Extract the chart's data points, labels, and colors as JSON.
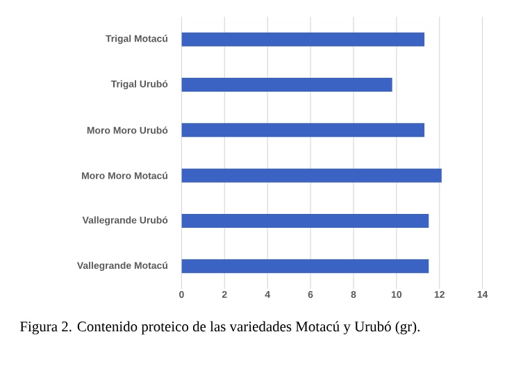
{
  "chart_data": {
    "type": "bar",
    "orientation": "horizontal",
    "categories": [
      "Trigal Motacú",
      "Trigal Urubó",
      "Moro Moro Urubó",
      "Moro Moro Motacú",
      "Vallegrande Urubó",
      "Vallegrande Motacú"
    ],
    "values": [
      11.3,
      9.8,
      11.3,
      12.1,
      11.5,
      11.5
    ],
    "color": "#3a63c4",
    "xlim": [
      0,
      14
    ],
    "xticks": [
      0,
      2,
      4,
      6,
      8,
      10,
      12,
      14
    ],
    "grid": "x",
    "annotations": [
      "Figura 2. Contenido proteico de las variedades Motacú y Urubó (gr)."
    ]
  }
}
